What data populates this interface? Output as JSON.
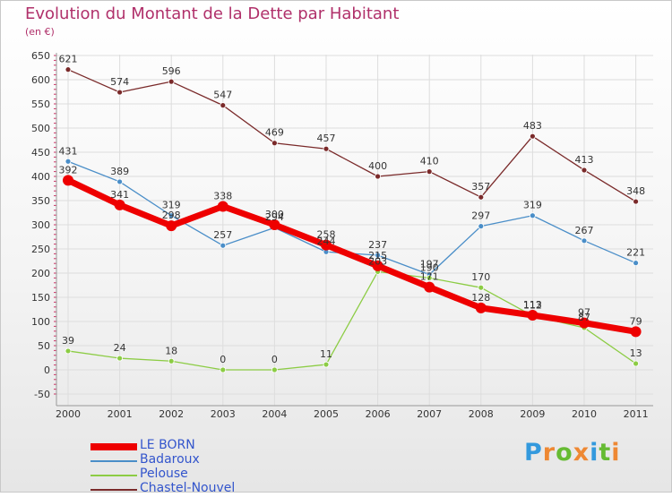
{
  "colors": {
    "title": "#b0306a",
    "axis_text": "#333333",
    "grid": "#dddddd",
    "legend_text": "#3355cc"
  },
  "chart_data": {
    "type": "line",
    "title": "Evolution du Montant de la Dette par Habitant",
    "subtitle": "(en €)",
    "x": [
      "2000",
      "2001",
      "2002",
      "2003",
      "2004",
      "2005",
      "2006",
      "2007",
      "2008",
      "2009",
      "2010",
      "2011"
    ],
    "ylim": [
      -50,
      650
    ],
    "yticks": [
      "-50",
      "0",
      "50",
      "100",
      "150",
      "200",
      "250",
      "300",
      "350",
      "400",
      "450",
      "500",
      "550",
      "600",
      "650"
    ],
    "grid": true,
    "legend_position": "bottom-left",
    "series": [
      {
        "name": "Chastel-Nouvel",
        "color": "#7a2a2a",
        "values": [
          621,
          574,
          596,
          547,
          469,
          457,
          400,
          410,
          357,
          483,
          413,
          348
        ],
        "labels": [
          "621",
          "574",
          "596",
          "547",
          "469",
          "457",
          "400",
          "410",
          "357",
          "483",
          "413",
          "348"
        ]
      },
      {
        "name": "Badaroux",
        "color": "#4a8ec8",
        "values": [
          431,
          389,
          319,
          257,
          294,
          244,
          237,
          197,
          297,
          319,
          267,
          221
        ],
        "labels": [
          "431",
          "389",
          "319",
          "257",
          "294",
          "244",
          "237",
          "197",
          "297",
          "319",
          "267",
          "221"
        ]
      },
      {
        "name": "Pelouse",
        "color": "#8ccc44",
        "values": [
          39,
          24,
          18,
          0,
          0,
          11,
          203,
          190,
          170,
          112,
          87,
          13
        ],
        "labels": [
          "39",
          "24",
          "18",
          "0",
          "0",
          "11",
          "203",
          "190",
          "170",
          "112",
          "87",
          "13"
        ]
      },
      {
        "name": "LE BORN",
        "color": "#ee0000",
        "values": [
          392,
          341,
          298,
          338,
          300,
          258,
          215,
          171,
          128,
          113,
          97,
          79
        ],
        "labels": [
          "392",
          "341",
          "298",
          "338",
          "300",
          "258",
          "215",
          "171",
          "128",
          "113",
          "97",
          "79"
        ]
      }
    ]
  },
  "legend": [
    {
      "name": "LE BORN",
      "color": "#ee0000"
    },
    {
      "name": "Badaroux",
      "color": "#4a8ec8"
    },
    {
      "name": "Pelouse",
      "color": "#8ccc44"
    },
    {
      "name": "Chastel-Nouvel",
      "color": "#7a2a2a"
    }
  ],
  "logo": {
    "letters": [
      "P",
      "r",
      "o",
      "x",
      "i",
      "t",
      "i"
    ],
    "colors": [
      "#3399dd",
      "#ee8833",
      "#66bb33",
      "#ee8833",
      "#3399dd",
      "#66bb33",
      "#ee8833"
    ]
  }
}
